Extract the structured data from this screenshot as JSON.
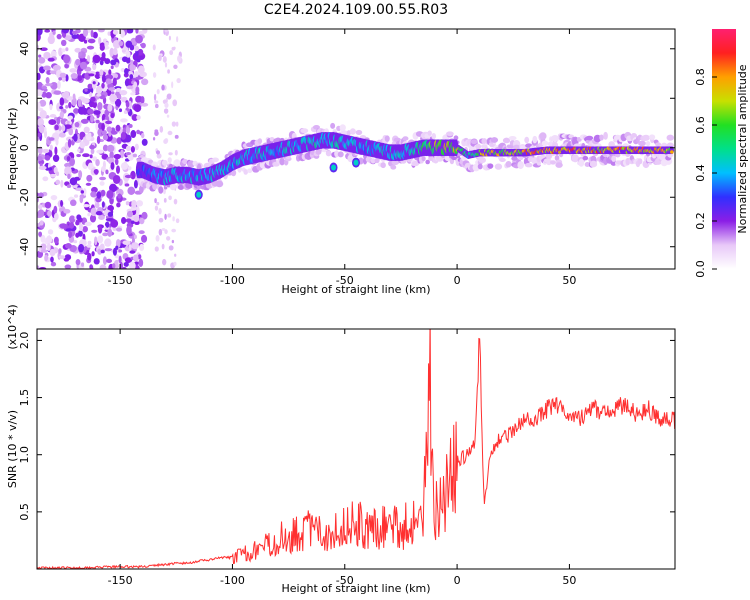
{
  "title": "C2E4.2024.109.00.55.R03",
  "chart_data": [
    {
      "type": "heatmap",
      "xlabel": "Height of straight line (km)",
      "ylabel": "Frequency (Hz)",
      "xlim": [
        -187,
        97
      ],
      "ylim": [
        -49,
        48
      ],
      "xticks": [
        -150,
        -100,
        -50,
        0,
        50
      ],
      "yticks": [
        -40,
        -20,
        0,
        20,
        40
      ],
      "colorbar": {
        "label": "Normalized spectral amplitude",
        "range": [
          0.0,
          1.0
        ],
        "ticks": [
          0.0,
          0.2,
          0.4,
          0.6,
          0.8
        ],
        "colors": [
          "#ffffff",
          "#e8c8f8",
          "#8b1ee6",
          "#3030ff",
          "#00bfff",
          "#00e08a",
          "#22e022",
          "#c8e000",
          "#ffa000",
          "#ff2020",
          "#ff2070"
        ]
      },
      "ridge": {
        "x": [
          -140,
          -135,
          -130,
          -125,
          -120,
          -115,
          -110,
          -105,
          -100,
          -95,
          -90,
          -85,
          -80,
          -75,
          -70,
          -65,
          -60,
          -55,
          -50,
          -45,
          -40,
          -35,
          -30,
          -25,
          -20,
          -15,
          -10,
          -5,
          0,
          5,
          10,
          15,
          20,
          25,
          30,
          40,
          50,
          60,
          70,
          80,
          90,
          95
        ],
        "y": [
          -9,
          -11,
          -12,
          -11,
          -11,
          -12,
          -11,
          -9,
          -6,
          -4,
          -3,
          -2,
          -1,
          0,
          1,
          2,
          3,
          3,
          2,
          1,
          0,
          -1,
          -2,
          -2,
          -1,
          0,
          0,
          0,
          0,
          -3,
          -2,
          -2,
          -2,
          -2,
          -2,
          -1,
          -1,
          -1,
          -1,
          -1,
          -1,
          -1
        ],
        "amplitude": [
          0.35,
          0.4,
          0.45,
          0.5,
          0.45,
          0.45,
          0.5,
          0.45,
          0.45,
          0.5,
          0.5,
          0.5,
          0.45,
          0.5,
          0.5,
          0.55,
          0.5,
          0.5,
          0.5,
          0.45,
          0.45,
          0.5,
          0.5,
          0.5,
          0.5,
          0.6,
          0.75,
          0.8,
          0.8,
          0.5,
          0.75,
          0.8,
          0.8,
          0.75,
          0.9,
          0.9,
          0.9,
          0.9,
          0.9,
          0.9,
          0.85,
          0.8
        ]
      },
      "grid": false
    },
    {
      "type": "line",
      "xlabel": "Height of straight line (km)",
      "ylabel": "SNR (10 * v/v)",
      "y_multiplier": "(x10^4)",
      "xlim": [
        -187,
        97
      ],
      "ylim": [
        0.0,
        2.1
      ],
      "xticks": [
        -150,
        -100,
        -50,
        0,
        50
      ],
      "yticks": [
        0.5,
        1.0,
        1.5,
        2.0
      ],
      "series": [
        {
          "color": "#ff3030",
          "x": [
            -187,
            -180,
            -170,
            -160,
            -150,
            -140,
            -135,
            -130,
            -125,
            -120,
            -115,
            -110,
            -105,
            -100,
            -95,
            -90,
            -85,
            -80,
            -75,
            -70,
            -65,
            -60,
            -55,
            -50,
            -45,
            -40,
            -35,
            -30,
            -25,
            -20,
            -15,
            -12,
            -10,
            -5,
            0,
            5,
            8,
            10,
            12,
            15,
            20,
            25,
            30,
            35,
            40,
            45,
            50,
            55,
            60,
            65,
            70,
            75,
            80,
            85,
            90,
            95
          ],
          "y": [
            0.01,
            0.01,
            0.01,
            0.015,
            0.02,
            0.02,
            0.03,
            0.04,
            0.05,
            0.05,
            0.07,
            0.08,
            0.1,
            0.1,
            0.13,
            0.17,
            0.2,
            0.25,
            0.3,
            0.32,
            0.35,
            0.3,
            0.35,
            0.38,
            0.42,
            0.33,
            0.35,
            0.4,
            0.35,
            0.42,
            0.4,
            1.82,
            0.5,
            0.7,
            0.95,
            1.0,
            1.1,
            2.05,
            0.55,
            1.05,
            1.15,
            1.2,
            1.3,
            1.3,
            1.4,
            1.45,
            1.35,
            1.32,
            1.4,
            1.38,
            1.4,
            1.45,
            1.35,
            1.4,
            1.32,
            1.3
          ]
        }
      ],
      "grid": false
    }
  ]
}
